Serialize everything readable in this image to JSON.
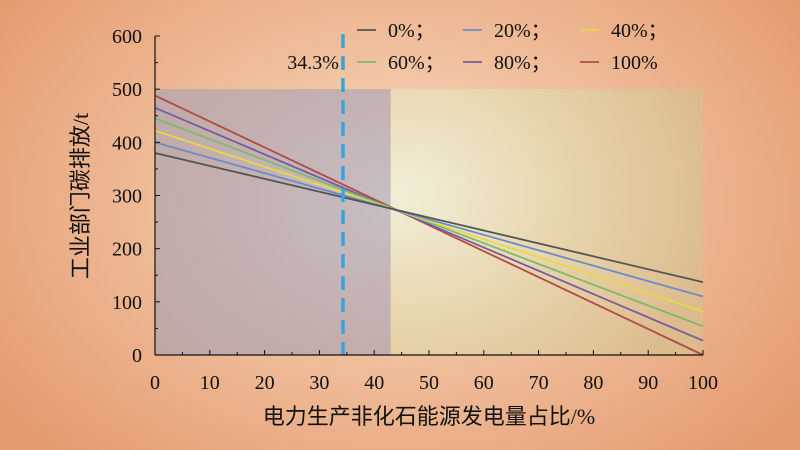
{
  "chart_data": {
    "type": "line",
    "title": "",
    "xlabel": "电力生产非化石能源发电量占比/%",
    "ylabel": "工业部门碳排放/t",
    "xlim": [
      0,
      100
    ],
    "ylim": [
      0,
      600
    ],
    "xticks": [
      0,
      10,
      20,
      30,
      40,
      50,
      60,
      70,
      80,
      90,
      100
    ],
    "yticks": [
      0,
      100,
      200,
      300,
      400,
      500,
      600
    ],
    "grid": false,
    "legend_position": "top-right",
    "series": [
      {
        "name": "0%；",
        "color": "#555555",
        "x": [
          0,
          100
        ],
        "y": [
          380,
          137
        ]
      },
      {
        "name": "20%；",
        "color": "#6b8cc8",
        "x": [
          0,
          100
        ],
        "y": [
          400,
          110
        ]
      },
      {
        "name": "40%；",
        "color": "#e6d84a",
        "x": [
          0,
          100
        ],
        "y": [
          422,
          82
        ]
      },
      {
        "name": "60%；",
        "color": "#7fba6a",
        "x": [
          0,
          100
        ],
        "y": [
          445,
          54
        ]
      },
      {
        "name": "80%；",
        "color": "#7a5aa0",
        "x": [
          0,
          100
        ],
        "y": [
          465,
          27
        ]
      },
      {
        "name": "100%",
        "color": "#b04a48",
        "x": [
          0,
          100
        ],
        "y": [
          488,
          0
        ]
      }
    ],
    "regions": [
      {
        "x": [
          0,
          43
        ],
        "y": [
          0,
          500
        ],
        "color": "#9c9fb8",
        "opacity": 0.55
      },
      {
        "x": [
          43,
          100
        ],
        "y": [
          0,
          500
        ],
        "color": "#e0ddb0",
        "opacity": 0.7
      }
    ],
    "annotations": [
      {
        "type": "vline",
        "x": 34.3,
        "label": "34.3%",
        "color": "#3aa3dd"
      }
    ]
  }
}
